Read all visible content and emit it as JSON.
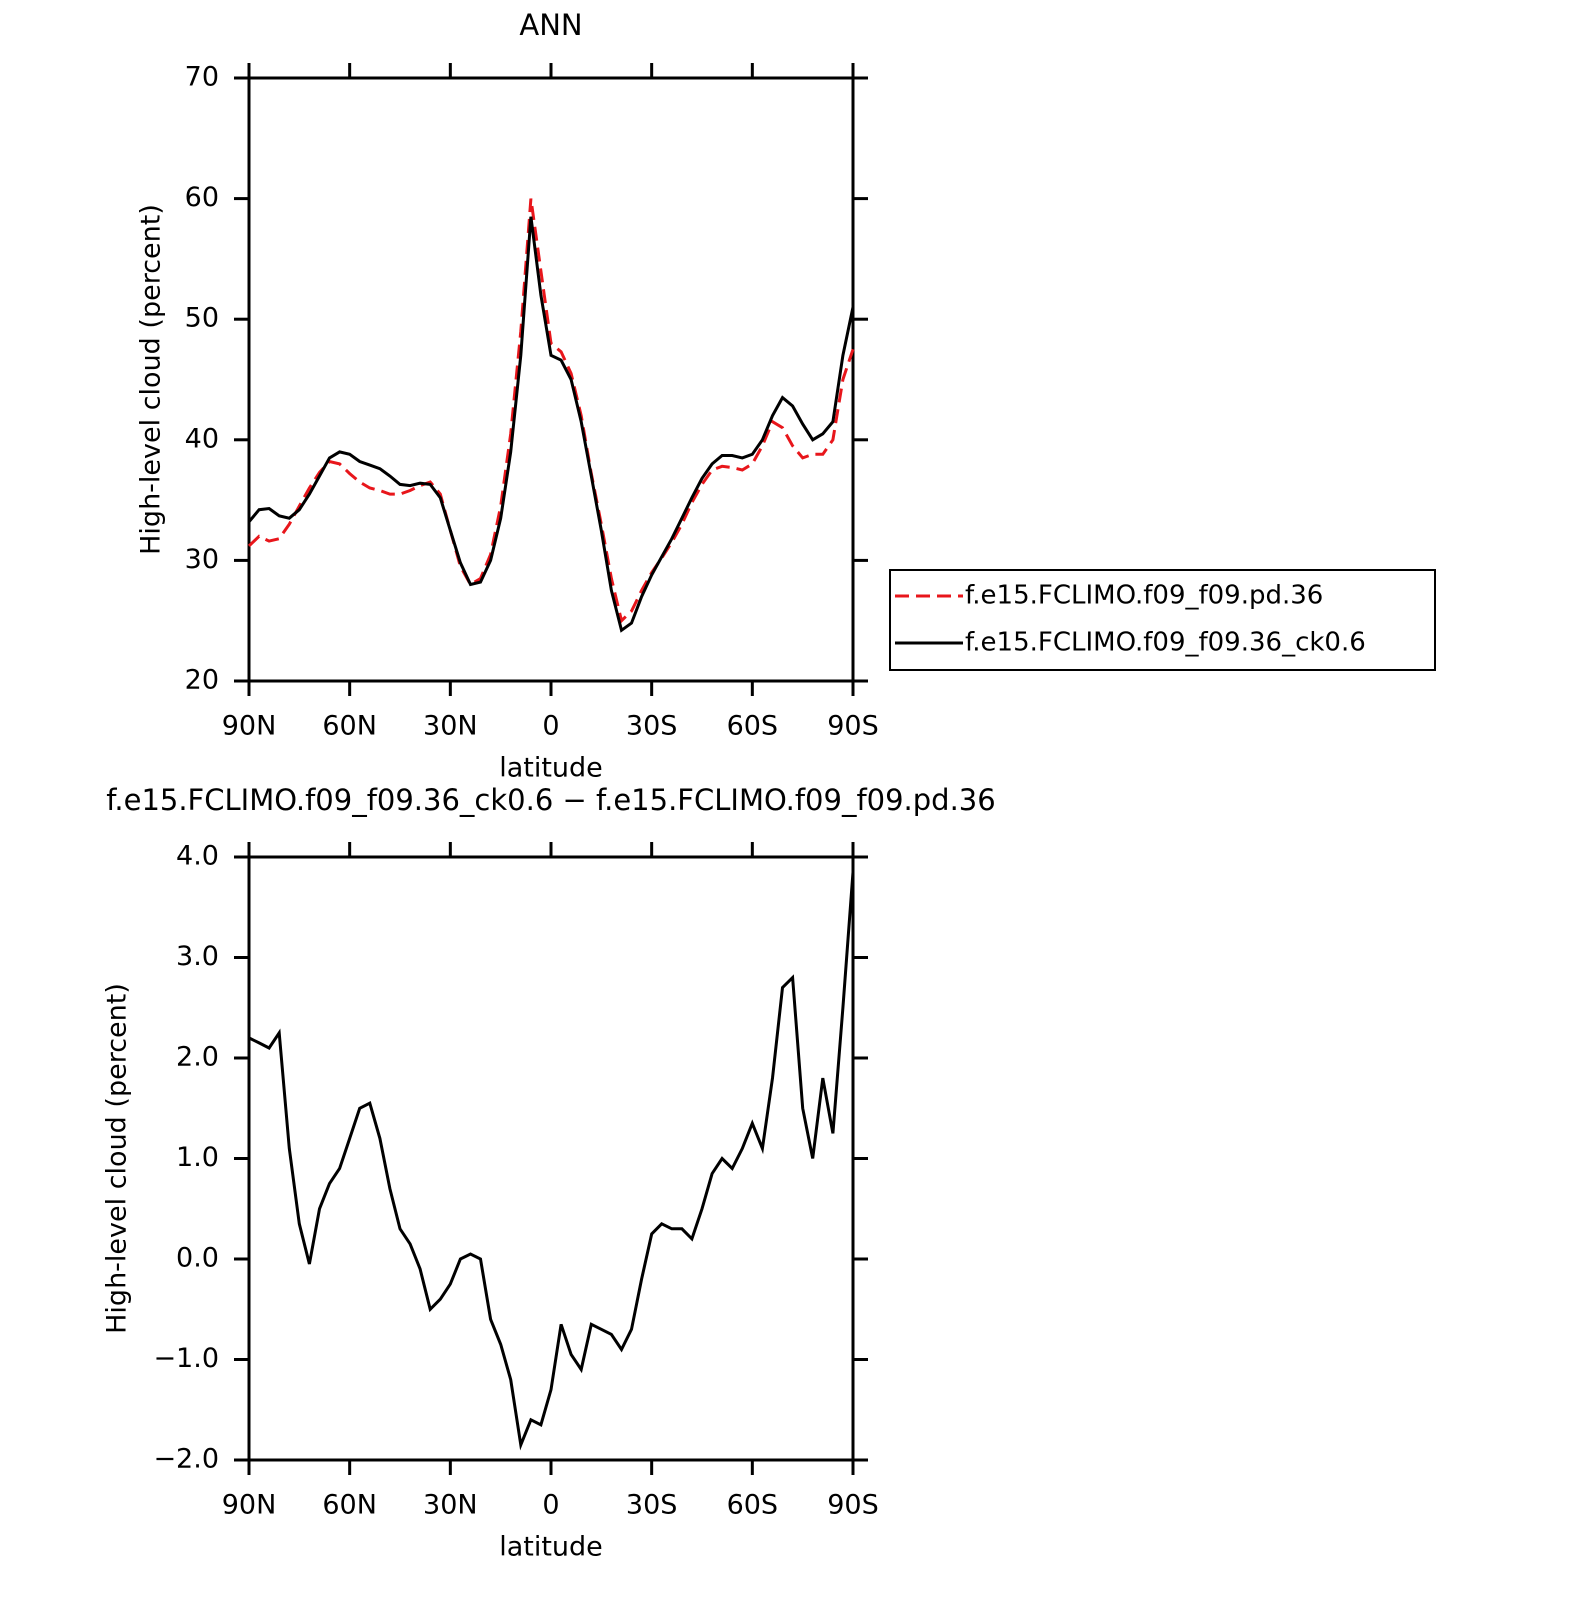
{
  "chart_data": [
    {
      "type": "line",
      "title": "ANN",
      "xlabel": "latitude",
      "ylabel": "High-level cloud (percent)",
      "x": [
        90,
        87,
        84,
        81,
        78,
        75,
        72,
        69,
        66,
        63,
        60,
        57,
        54,
        51,
        48,
        45,
        42,
        39,
        36,
        33,
        30,
        27,
        24,
        21,
        18,
        15,
        12,
        9,
        6,
        3,
        0,
        -3,
        -6,
        -9,
        -12,
        -15,
        -18,
        -21,
        -24,
        -27,
        -30,
        -33,
        -36,
        -39,
        -42,
        -45,
        -48,
        -51,
        -54,
        -57,
        -60,
        -63,
        -66,
        -69,
        -72,
        -75,
        -78,
        -81,
        -84,
        -87,
        -90
      ],
      "xlim": [
        90,
        -90
      ],
      "xticks": [
        {
          "value": 90,
          "label": "90N"
        },
        {
          "value": 60,
          "label": "60N"
        },
        {
          "value": 30,
          "label": "30N"
        },
        0,
        {
          "value": -30,
          "label": "30S"
        },
        {
          "value": -60,
          "label": "60S"
        },
        {
          "value": -90,
          "label": "90S"
        }
      ],
      "ylim": [
        20,
        70
      ],
      "yticks": [
        20,
        30,
        40,
        50,
        60,
        70
      ],
      "legend": "right",
      "series": [
        {
          "name": "f.e15.FCLIMO.f09_f09.pd.36",
          "color": "#e8161b",
          "dash": "dashed",
          "values": [
            31.2,
            32.0,
            31.6,
            31.8,
            33.0,
            34.5,
            36.0,
            37.3,
            38.2,
            38.0,
            37.2,
            36.5,
            36.0,
            35.8,
            35.5,
            35.5,
            35.8,
            36.2,
            36.5,
            35.5,
            32.5,
            29.5,
            28.0,
            28.5,
            30.5,
            34.5,
            40.5,
            49.0,
            60.0,
            54.0,
            48.0,
            47.3,
            45.5,
            42.0,
            37.2,
            33.0,
            28.5,
            25.0,
            25.8,
            27.5,
            29.0,
            30.2,
            31.5,
            33.0,
            34.8,
            36.3,
            37.5,
            37.8,
            37.7,
            37.5,
            38.0,
            39.5,
            41.5,
            41.0,
            39.5,
            38.5,
            38.8,
            38.8,
            40.0,
            45.0,
            47.5
          ]
        },
        {
          "name": "f.e15.FCLIMO.f09_f09.36_ck0.6",
          "color": "#000000",
          "dash": "solid",
          "values": [
            33.2,
            34.2,
            34.3,
            33.7,
            33.5,
            34.2,
            35.5,
            37.0,
            38.5,
            39.0,
            38.8,
            38.2,
            37.9,
            37.6,
            37.0,
            36.3,
            36.2,
            36.4,
            36.3,
            35.2,
            32.5,
            29.8,
            28.0,
            28.2,
            30.0,
            33.5,
            39.0,
            47.0,
            58.5,
            52.0,
            47.0,
            46.6,
            45.0,
            41.5,
            37.0,
            32.5,
            27.5,
            24.2,
            24.8,
            27.0,
            28.8,
            30.3,
            31.8,
            33.5,
            35.2,
            36.8,
            38.0,
            38.7,
            38.7,
            38.5,
            38.8,
            40.0,
            42.0,
            43.5,
            42.8,
            41.3,
            40.0,
            40.5,
            41.5,
            47.0,
            51.0
          ]
        }
      ]
    },
    {
      "type": "line",
      "title": "f.e15.FCLIMO.f09_f09.36_ck0.6 − f.e15.FCLIMO.f09_f09.pd.36",
      "xlabel": "latitude",
      "ylabel": "High-level cloud (percent)",
      "x": [
        90,
        87,
        84,
        81,
        78,
        75,
        72,
        69,
        66,
        63,
        60,
        57,
        54,
        51,
        48,
        45,
        42,
        39,
        36,
        33,
        30,
        27,
        24,
        21,
        18,
        15,
        12,
        9,
        6,
        3,
        0,
        -3,
        -6,
        -9,
        -12,
        -15,
        -18,
        -21,
        -24,
        -27,
        -30,
        -33,
        -36,
        -39,
        -42,
        -45,
        -48,
        -51,
        -54,
        -57,
        -60,
        -63,
        -66,
        -69,
        -72,
        -75,
        -78,
        -81,
        -84,
        -87,
        -90
      ],
      "xlim": [
        90,
        -90
      ],
      "xticks": [
        {
          "value": 90,
          "label": "90N"
        },
        {
          "value": 60,
          "label": "60N"
        },
        {
          "value": 30,
          "label": "30N"
        },
        0,
        {
          "value": -30,
          "label": "30S"
        },
        {
          "value": -60,
          "label": "60S"
        },
        {
          "value": -90,
          "label": "90S"
        }
      ],
      "ylim": [
        -2,
        4
      ],
      "yticks": [
        {
          "value": -2,
          "label": "−2.0"
        },
        {
          "value": -1,
          "label": "−1.0"
        },
        {
          "value": 0,
          "label": "0.0"
        },
        {
          "value": 1,
          "label": "1.0"
        },
        {
          "value": 2,
          "label": "2.0"
        },
        {
          "value": 3,
          "label": "3.0"
        },
        {
          "value": 4,
          "label": "4.0"
        }
      ],
      "series": [
        {
          "color": "#000000",
          "dash": "solid",
          "values": [
            2.2,
            2.15,
            2.1,
            2.25,
            1.1,
            0.35,
            -0.05,
            0.5,
            0.75,
            0.9,
            1.2,
            1.5,
            1.55,
            1.2,
            0.7,
            0.3,
            0.15,
            -0.1,
            -0.5,
            -0.4,
            -0.25,
            0.0,
            0.05,
            0.0,
            -0.6,
            -0.85,
            -1.2,
            -1.85,
            -1.6,
            -1.65,
            -1.3,
            -0.65,
            -0.95,
            -1.1,
            -0.65,
            -0.7,
            -0.75,
            -0.9,
            -0.7,
            -0.2,
            0.25,
            0.35,
            0.3,
            0.3,
            0.2,
            0.5,
            0.85,
            1.0,
            0.9,
            1.1,
            1.35,
            1.1,
            1.8,
            2.7,
            2.8,
            1.5,
            1.0,
            1.8,
            1.25,
            2.5,
            3.85
          ]
        }
      ]
    }
  ]
}
